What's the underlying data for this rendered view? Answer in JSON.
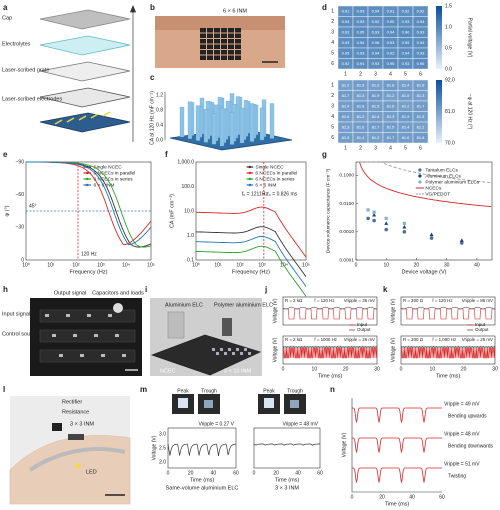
{
  "a": {
    "letter": "a",
    "labels": [
      "Cap",
      "Electrolytes",
      "Laser-scribed grate",
      "Laser-scribed electrodes"
    ]
  },
  "b": {
    "letter": "b",
    "label": "6 × 6 INM"
  },
  "c": {
    "letter": "c",
    "ylabel": "CA at 120 Hz (mF cm⁻²)",
    "ticks": [
      "0.0",
      "0.4",
      "0.8",
      "1.2"
    ]
  },
  "d": {
    "letter": "d",
    "top_values": [
      [
        0.91,
        0.93,
        0.94,
        0.91,
        0.92,
        0.92
      ],
      [
        0.94,
        0.93,
        0.92,
        0.95,
        0.93,
        0.94
      ],
      [
        0.92,
        0.95,
        0.93,
        0.94,
        0.96,
        0.93
      ],
      [
        0.93,
        0.94,
        0.96,
        0.93,
        0.95,
        0.94
      ],
      [
        0.95,
        0.93,
        0.94,
        0.92,
        0.94,
        0.93
      ],
      [
        0.92,
        0.94,
        0.93,
        0.95,
        0.93,
        0.96
      ]
    ],
    "top_label": "Partial voltage (V)",
    "top_ticks": [
      "0.0",
      "0.5",
      "1.0",
      "1.5"
    ],
    "bottom_values": [
      [
        81.2,
        81.5,
        81.3,
        81.8,
        81.4,
        81.6
      ],
      [
        81.7,
        81.3,
        81.9,
        81.2,
        81.5,
        81.3
      ],
      [
        81.4,
        81.8,
        81.5,
        81.6,
        81.2,
        81.7
      ],
      [
        81.6,
        81.2,
        81.4,
        81.3,
        81.9,
        81.5
      ],
      [
        81.3,
        81.6,
        81.7,
        81.5,
        81.4,
        81.2
      ],
      [
        81.5,
        81.4,
        81.2,
        81.7,
        81.6,
        81.8
      ]
    ],
    "bottom_label": "−φ at 120 Hz (°)",
    "bottom_ticks": [
      "70.0",
      "81.0",
      "92.0"
    ],
    "axis_ticks": [
      "1",
      "2",
      "3",
      "4",
      "5",
      "6"
    ]
  },
  "e": {
    "letter": "e",
    "ylabel": "φ (°)",
    "xlabel": "Frequency (Hz)",
    "yticks": [
      "−90",
      "−60",
      "−30",
      "0"
    ],
    "xticks": [
      "10⁰",
      "10¹",
      "10²",
      "10³",
      "10⁴",
      "10⁵"
    ],
    "note_phase": "45°",
    "note_freq": "120 Hz",
    "series": [
      {
        "name": "Single NCEC",
        "color": "#333333"
      },
      {
        "name": "6 NCECs in parallel",
        "color": "#d62728"
      },
      {
        "name": "6 NCECs in series",
        "color": "#2ca02c"
      },
      {
        "name": "6 × 6 INM",
        "color": "#1f77b4"
      }
    ]
  },
  "f": {
    "letter": "f",
    "ylabel": "CA (mF cm⁻²)",
    "xlabel": "Frequency (Hz)",
    "yticks": [
      "1,000.0",
      "100.0",
      "10.0",
      "1.0",
      "0.1"
    ],
    "xticks": [
      "10⁰",
      "10¹",
      "10²",
      "10³",
      "10⁴",
      "10⁵"
    ],
    "note_f": "f₀ = 1211Hz",
    "note_tau": "τ₀ = 0.826 ms",
    "series": [
      {
        "name": "Single NCEC",
        "color": "#333333"
      },
      {
        "name": "6 NCECs in parallel",
        "color": "#d62728"
      },
      {
        "name": "6 NCECs in series",
        "color": "#2ca02c"
      },
      {
        "name": "6 × 6 INM",
        "color": "#1f77b4"
      }
    ]
  },
  "g": {
    "letter": "g",
    "ylabel": "Device volumetric capacitance (F cm⁻³)",
    "xlabel": "Device voltage (V)",
    "xlim": [
      0,
      45
    ],
    "ylim": [
      0.0001,
      0.3
    ],
    "xticks": [
      0,
      10,
      20,
      30,
      40
    ],
    "yticks": [
      {
        "value": 0.1,
        "label": "0.1000"
      },
      {
        "value": 0.01,
        "label": "0.0100"
      },
      {
        "value": 0.001,
        "label": "0.0010"
      },
      {
        "value": 0.0001,
        "label": "0.0001"
      }
    ],
    "series": [
      {
        "name": "Tantalum ELCs",
        "color": "#4a6fa5",
        "x": [
          4,
          6,
          10,
          16,
          25,
          35
        ],
        "y": [
          0.003,
          0.0025,
          0.0012,
          0.001,
          0.0006,
          0.0004
        ]
      },
      {
        "name": "Aluminium ELCs",
        "color": "#2b3f63",
        "x": [
          6,
          10,
          16,
          25,
          35
        ],
        "y": [
          0.004,
          0.002,
          0.0015,
          0.0008,
          0.0005
        ]
      },
      {
        "name": "Polymer aluminium ELCs",
        "color": "#7fb3d5",
        "x": [
          4,
          6,
          10,
          16
        ],
        "y": [
          0.006,
          0.005,
          0.003,
          0.002
        ]
      }
    ],
    "lines": [
      {
        "name": "NCECs",
        "color": "#d62728"
      },
      {
        "name": "VG/PEDOT",
        "color": "#999999"
      }
    ]
  },
  "h": {
    "letter": "h",
    "labels": [
      "Input signal",
      "Control source",
      "Output signal",
      "Capacitors and loads"
    ]
  },
  "i": {
    "letter": "i",
    "labels": [
      "Aluminium ELC",
      "Polymer aluminium ELC",
      "NCEC",
      "2 × 10 INM"
    ]
  },
  "j": {
    "letter": "j",
    "top": [
      "R = 2 kΩ",
      "f = 120 Hz",
      "Vripple = 36 mV"
    ],
    "bottom": [
      "R = 2 kΩ",
      "f = 1000 Hz",
      "Vripple = 26 mV"
    ],
    "legend": [
      "Input",
      "Output"
    ],
    "xlabel": "Time (ms)",
    "ylabel": "Voltage (V)",
    "xticks": [
      "0",
      "10",
      "20",
      "30"
    ]
  },
  "k": {
    "letter": "k",
    "top": [
      "R = 200 Ω",
      "f = 120 Hz",
      "Vripple = 86 mV"
    ],
    "bottom": [
      "R = 200 Ω",
      "f = 1,000 Hz",
      "Vripple = 25 mV"
    ],
    "legend": [
      "Input",
      "Output"
    ],
    "xlabel": "Time (ms)",
    "ylabel": "Voltage (V)",
    "xticks": [
      "0",
      "10",
      "20",
      "30"
    ]
  },
  "l": {
    "letter": "l",
    "labels": [
      "Rectifier",
      "Resistance",
      "3 × 3 INM",
      "LED"
    ]
  },
  "m": {
    "letter": "m",
    "photo_labels": [
      "Peak",
      "Trough"
    ],
    "left_ripple": "Vripple = 0.27 V",
    "right_ripple": "Vripple = 48 mV",
    "left_caption": "Same-volume aluminium ELC",
    "right_caption": "3 × 3 INM",
    "xlabel": "Time (ms)",
    "ylabel": "Voltage (V)",
    "yticks": [
      "3.0",
      "2.5",
      "2.0"
    ],
    "xticks": [
      "0",
      "20",
      "40",
      "60"
    ]
  },
  "n": {
    "letter": "n",
    "rows": [
      {
        "ripple": "Vripple = 49 mV",
        "label": "Bending upwards"
      },
      {
        "ripple": "Vripple = 48 mV",
        "label": "Bending downwards"
      },
      {
        "ripple": "Vripple = 51 mV",
        "label": "Twisting"
      }
    ],
    "xlabel": "Time (ms)",
    "ylabel": "Voltage (V)",
    "xticks": [
      "0",
      "20",
      "40",
      "60"
    ]
  }
}
